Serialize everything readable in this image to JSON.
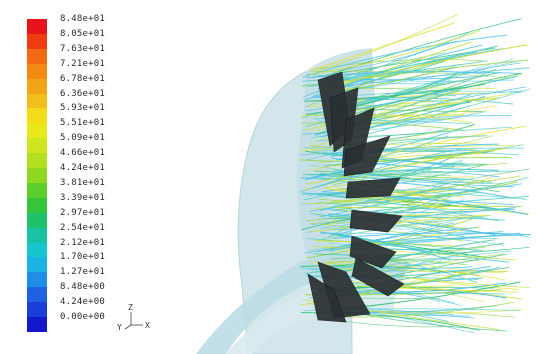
{
  "legend": {
    "labels": [
      "8.48e+01",
      "8.05e+01",
      "7.63e+01",
      "7.21e+01",
      "6.78e+01",
      "6.36e+01",
      "5.93e+01",
      "5.51e+01",
      "5.09e+01",
      "4.66e+01",
      "4.24e+01",
      "3.81e+01",
      "3.39e+01",
      "2.97e+01",
      "2.54e+01",
      "2.12e+01",
      "1.70e+01",
      "1.27e+01",
      "8.48e+00",
      "4.24e+00",
      "0.00e+00"
    ],
    "colors": [
      "#e8141b",
      "#f03a10",
      "#f26a12",
      "#f28a14",
      "#f2a416",
      "#f2bf18",
      "#f2dc1a",
      "#e8e81c",
      "#cfe61e",
      "#b2e020",
      "#8ed824",
      "#5ccf2c",
      "#34c53a",
      "#1fc26a",
      "#18c2a2",
      "#16c6cc",
      "#1cb2e6",
      "#1e8ee6",
      "#1e62e0",
      "#1c3ed8",
      "#1418cc"
    ]
  },
  "axes": {
    "up": "Z",
    "left": "Y",
    "right": "X"
  },
  "scene": {
    "housing_color": "#cfe3ea",
    "hub_color": "#bfdde6",
    "vane_color": "#2a2f33",
    "streak_colors": [
      "#43c0e6",
      "#58d0c6",
      "#74d28a",
      "#9bd84a",
      "#c6e03c",
      "#e4e43a",
      "#58c8e8",
      "#34c27a"
    ]
  }
}
